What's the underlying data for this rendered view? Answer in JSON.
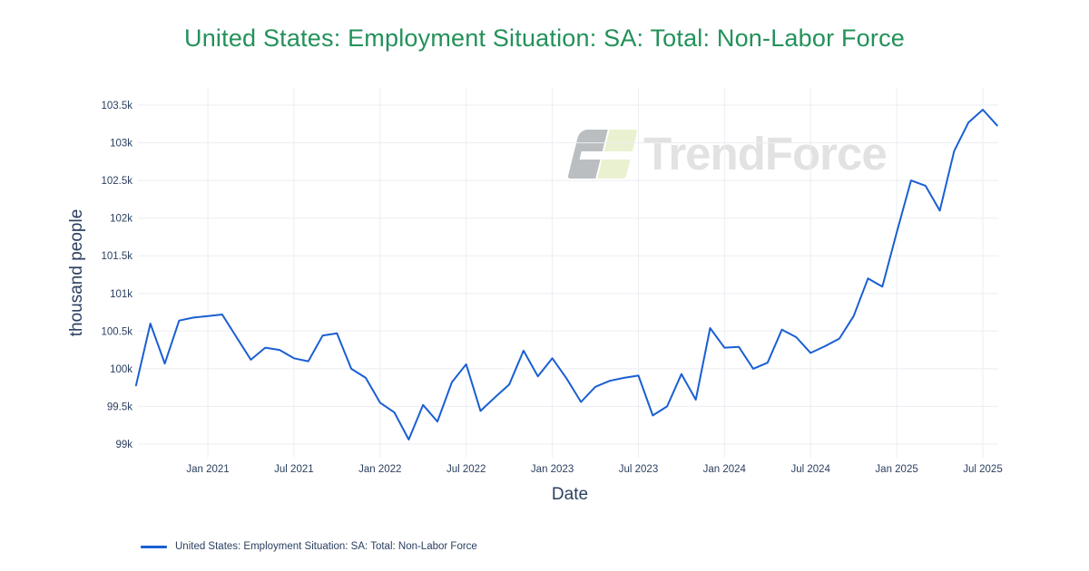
{
  "title": "United States: Employment Situation: SA: Total: Non-Labor Force",
  "watermark": {
    "brand": "TrendForce"
  },
  "legend": {
    "series_label": "United States: Employment Situation: SA: Total: Non-Labor Force"
  },
  "colors": {
    "title": "#23915a",
    "series": "#1a5fd2",
    "grid": "#ebeef2",
    "axis_text": "#2a3f5f",
    "background": "#ffffff",
    "watermark_text": "#e2e2e2",
    "watermark_logo_gray": "rgba(130,136,140,0.55)",
    "watermark_logo_green": "rgba(196,214,120,0.35)"
  },
  "chart_data": {
    "type": "line",
    "title": "United States: Employment Situation: SA: Total: Non-Labor Force",
    "xlabel": "Date",
    "ylabel": "thousand people",
    "legend_position": "bottom-left",
    "grid": true,
    "ylim": [
      99000,
      103500
    ],
    "y_ticks": {
      "values": [
        99000,
        99500,
        100000,
        100500,
        101000,
        101500,
        102000,
        102500,
        103000,
        103500
      ],
      "labels": [
        "99k",
        "99.5k",
        "100k",
        "100.5k",
        "101k",
        "101.5k",
        "102k",
        "102.5k",
        "103k",
        "103.5k"
      ]
    },
    "x_ticks": {
      "labels": [
        "Jan 2021",
        "Jul 2021",
        "Jan 2022",
        "Jul 2022",
        "Jan 2023",
        "Jul 2023",
        "Jan 2024",
        "Jul 2024",
        "Jan 2025",
        "Jul 2025"
      ],
      "x_index": [
        5,
        11,
        17,
        23,
        29,
        35,
        41,
        47,
        53,
        59
      ]
    },
    "x": [
      "2020-08",
      "2020-09",
      "2020-10",
      "2020-11",
      "2020-12",
      "2021-01",
      "2021-02",
      "2021-03",
      "2021-04",
      "2021-05",
      "2021-06",
      "2021-07",
      "2021-08",
      "2021-09",
      "2021-10",
      "2021-11",
      "2021-12",
      "2022-01",
      "2022-02",
      "2022-03",
      "2022-04",
      "2022-05",
      "2022-06",
      "2022-07",
      "2022-08",
      "2022-09",
      "2022-10",
      "2022-11",
      "2022-12",
      "2023-01",
      "2023-02",
      "2023-03",
      "2023-04",
      "2023-05",
      "2023-06",
      "2023-07",
      "2023-08",
      "2023-09",
      "2023-10",
      "2023-11",
      "2023-12",
      "2024-01",
      "2024-02",
      "2024-03",
      "2024-04",
      "2024-05",
      "2024-06",
      "2024-07",
      "2024-08",
      "2024-09",
      "2024-10",
      "2024-11",
      "2024-12",
      "2025-01",
      "2025-02",
      "2025-03",
      "2025-04",
      "2025-05",
      "2025-06",
      "2025-07",
      "2025-08"
    ],
    "values": [
      99780,
      100600,
      100070,
      100640,
      100680,
      100700,
      100720,
      100420,
      100120,
      100280,
      100250,
      100140,
      100100,
      100440,
      100470,
      100000,
      99880,
      99550,
      99420,
      99060,
      99520,
      99300,
      99820,
      100060,
      99440,
      99620,
      99790,
      100240,
      99900,
      100140,
      99870,
      99560,
      99760,
      99840,
      99880,
      99910,
      99380,
      99500,
      99930,
      99590,
      100540,
      100280,
      100290,
      100000,
      100080,
      100520,
      100420,
      100210,
      100300,
      100400,
      100700,
      101200,
      101090,
      101810,
      102500,
      102430,
      102100,
      102890,
      103270,
      103440,
      103230
    ]
  }
}
